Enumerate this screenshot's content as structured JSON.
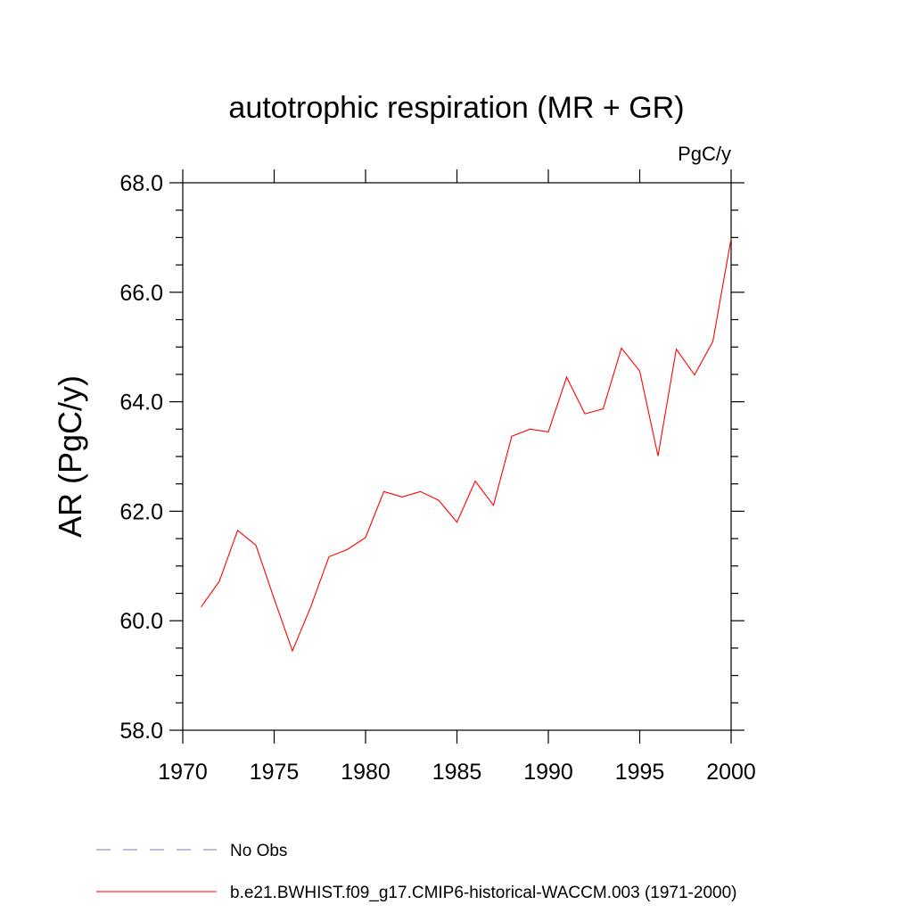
{
  "chart_data": {
    "type": "line",
    "title": "autotrophic respiration (MR + GR)",
    "units": "PgC/y",
    "ylabel": "AR  (PgC/y)",
    "xlabel": "",
    "xlim": [
      1970,
      2000
    ],
    "ylim": [
      58.0,
      68.0
    ],
    "xticks": [
      "1970",
      "1975",
      "1980",
      "1985",
      "1990",
      "1995",
      "2000"
    ],
    "yticks": [
      "58.0",
      "60.0",
      "62.0",
      "64.0",
      "66.0",
      "68.0"
    ],
    "grid": false,
    "legend_position": "bottom-left",
    "series": [
      {
        "name": "b.e21.BWHIST.f09_g17.CMIP6-historical-WACCM.003 (1971-2000)",
        "color": "#ff0000",
        "style": "solid",
        "x": [
          1971,
          1972,
          1973,
          1974,
          1975,
          1976,
          1977,
          1978,
          1979,
          1980,
          1981,
          1982,
          1983,
          1984,
          1985,
          1986,
          1987,
          1988,
          1989,
          1990,
          1991,
          1992,
          1993,
          1994,
          1995,
          1996,
          1997,
          1998,
          1999,
          2000
        ],
        "y": [
          60.25,
          60.72,
          61.65,
          61.38,
          60.4,
          59.45,
          60.25,
          61.17,
          61.3,
          61.52,
          62.36,
          62.26,
          62.36,
          62.2,
          61.8,
          62.55,
          62.11,
          63.37,
          63.5,
          63.45,
          64.45,
          63.78,
          63.87,
          64.98,
          64.56,
          63.01,
          64.96,
          64.49,
          65.1,
          66.98
        ]
      }
    ],
    "legend": [
      {
        "label": "No Obs",
        "color": "#7777bb",
        "style": "dashed"
      },
      {
        "label": "b.e21.BWHIST.f09_g17.CMIP6-historical-WACCM.003 (1971-2000)",
        "color": "#ff0000",
        "style": "solid"
      }
    ]
  }
}
